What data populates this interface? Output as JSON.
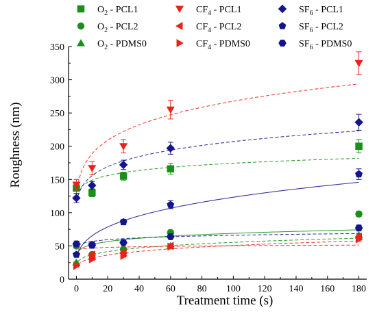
{
  "chart_data": {
    "type": "scatter",
    "title": "",
    "xlabel": "Treatment time (s)",
    "ylabel": "Roughness (nm)",
    "xlim": [
      -5,
      185
    ],
    "ylim": [
      0,
      350
    ],
    "xticks": [
      0,
      20,
      40,
      60,
      80,
      100,
      120,
      140,
      160,
      180
    ],
    "yticks": [
      0,
      50,
      100,
      150,
      200,
      250,
      300,
      350
    ],
    "grid": false,
    "legend_position": "top",
    "series": [
      {
        "name": "O2 - PCL1",
        "legend_main": "O",
        "legend_sub": "2",
        "legend_rest": " - PCL1",
        "color": "#1a8f1a",
        "marker": "square",
        "x": [
          0,
          10,
          30,
          60,
          180
        ],
        "y": [
          137,
          130,
          155,
          166,
          200
        ],
        "err": [
          8,
          6,
          6,
          8,
          10
        ],
        "fit": "dashed"
      },
      {
        "name": "O2 - PCL2",
        "legend_main": "O",
        "legend_sub": "2",
        "legend_rest": " - PCL2",
        "color": "#1a8f1a",
        "marker": "circle",
        "x": [
          0,
          10,
          30,
          60,
          180
        ],
        "y": [
          50,
          37,
          45,
          70,
          98
        ],
        "err": [
          3,
          3,
          3,
          4,
          4
        ],
        "fit": "solid"
      },
      {
        "name": "O2 - PDMS0",
        "legend_main": "O",
        "legend_sub": "2",
        "legend_rest": " - PDMS0",
        "color": "#1a8f1a",
        "marker": "triangle-up",
        "x": [
          0,
          10,
          30,
          60,
          180
        ],
        "y": [
          25,
          34,
          43,
          50,
          66
        ],
        "err": [
          2,
          2,
          2,
          3,
          3
        ],
        "fit": "dashed"
      },
      {
        "name": "CF4 - PCL1",
        "legend_main": "CF",
        "legend_sub": "4",
        "legend_rest": " - PCL1",
        "color": "#e8231a",
        "marker": "triangle-down",
        "x": [
          0,
          10,
          30,
          60,
          180
        ],
        "y": [
          142,
          167,
          200,
          255,
          325
        ],
        "err": [
          8,
          10,
          10,
          14,
          17
        ],
        "fit": "dashed"
      },
      {
        "name": "CF4 - PCL2",
        "legend_main": "CF",
        "legend_sub": "4",
        "legend_rest": " - PCL2",
        "color": "#e8231a",
        "marker": "triangle-left",
        "x": [
          0,
          10,
          30,
          60,
          180
        ],
        "y": [
          52,
          37,
          40,
          50,
          64
        ],
        "err": [
          3,
          3,
          3,
          3,
          3
        ],
        "fit": "dashed"
      },
      {
        "name": "CF4 - PDMS0",
        "legend_main": "CF",
        "legend_sub": "4",
        "legend_rest": " - PDMS0",
        "color": "#e8231a",
        "marker": "triangle-right",
        "x": [
          0,
          10,
          30,
          60,
          180
        ],
        "y": [
          20,
          30,
          35,
          49,
          60
        ],
        "err": [
          2,
          2,
          2,
          3,
          3
        ],
        "fit": "dashed"
      },
      {
        "name": "SF6 - PCL1",
        "legend_main": "SF",
        "legend_sub": "6",
        "legend_rest": " - PCL1",
        "color": "#14148c",
        "marker": "diamond",
        "x": [
          0,
          10,
          30,
          60,
          180
        ],
        "y": [
          122,
          141,
          172,
          197,
          236
        ],
        "err": [
          7,
          6,
          7,
          9,
          12
        ],
        "fit": "dashed"
      },
      {
        "name": "SF6 - PCL2",
        "legend_main": "SF",
        "legend_sub": "6",
        "legend_rest": " - PCL2",
        "color": "#14148c",
        "marker": "pentagon",
        "x": [
          0,
          10,
          30,
          60,
          180
        ],
        "y": [
          37,
          52,
          86,
          112,
          158
        ],
        "err": [
          3,
          4,
          4,
          6,
          8
        ],
        "fit": "solid"
      },
      {
        "name": "SF6 - PDMS0",
        "legend_main": "SF",
        "legend_sub": "6",
        "legend_rest": " - PDMS0",
        "color": "#14148c",
        "marker": "hexagon",
        "x": [
          0,
          10,
          30,
          60,
          180
        ],
        "y": [
          53,
          51,
          55,
          64,
          77
        ],
        "err": [
          3,
          3,
          3,
          3,
          4
        ],
        "fit": "dashed"
      }
    ]
  }
}
